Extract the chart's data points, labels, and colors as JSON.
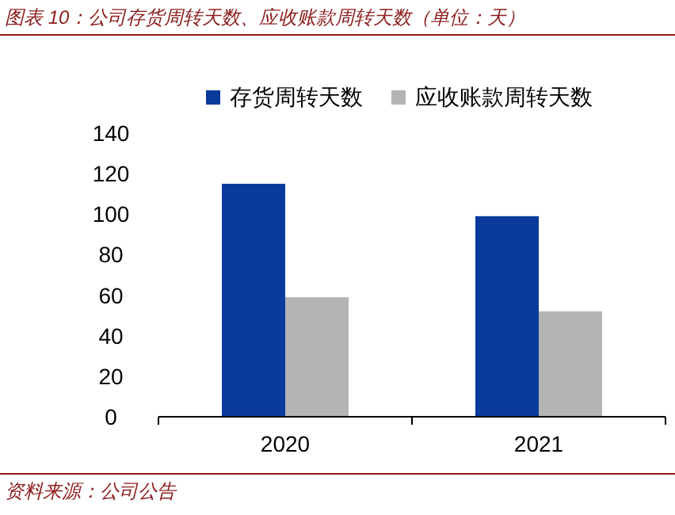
{
  "chart_data": {
    "type": "bar",
    "title": "图表 10：公司存货周转天数、应收账款周转天数（单位：天）",
    "categories": [
      "2020",
      "2021"
    ],
    "series": [
      {
        "name": "存货周转天数",
        "color": "#0a3a9c",
        "values": [
          115,
          99
        ]
      },
      {
        "name": "应收账款周转天数",
        "color": "#b4b4b4",
        "values": [
          59,
          52
        ]
      }
    ],
    "ylim": [
      0,
      140
    ],
    "yticks": [
      0,
      20,
      40,
      60,
      80,
      100,
      120,
      140
    ],
    "legend": "top",
    "annotations": [
      "资料来源：公司公告"
    ]
  }
}
